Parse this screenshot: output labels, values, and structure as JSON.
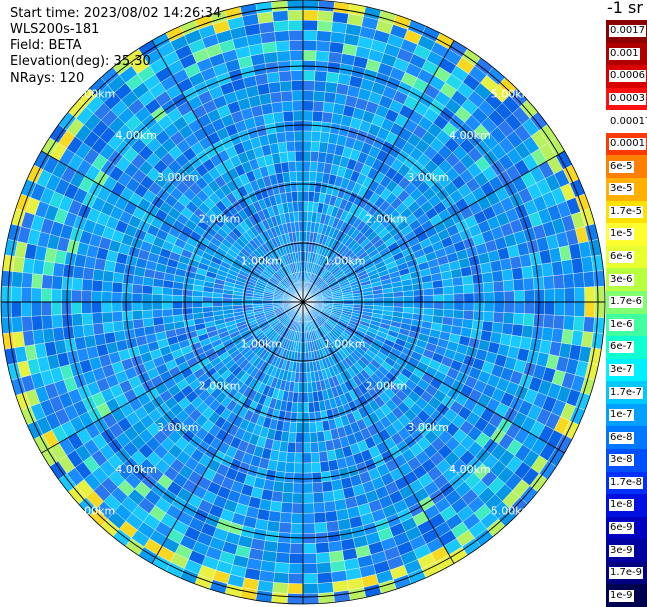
{
  "header": {
    "start_time": "Start time: 2023/08/02 14:26:34",
    "device": "WLS200s-181",
    "field": "Field: BETA",
    "elevation": "Elevation(deg): 35.30",
    "nrays": "NRays: 120"
  },
  "colorbar": {
    "unit": "-1 sr",
    "labels": [
      "0.0017",
      "0.001",
      "0.0006",
      "0.0003",
      "0.00017",
      "0.0001",
      "6e-5",
      "3e-5",
      "1.7e-5",
      "1e-5",
      "6e-6",
      "3e-6",
      "1.7e-6",
      "1e-6",
      "6e-7",
      "3e-7",
      "1.7e-7",
      "1e-7",
      "6e-8",
      "3e-8",
      "1.7e-8",
      "1e-8",
      "6e-9",
      "3e-9",
      "1.7e-9",
      "1e-9"
    ],
    "colors": [
      "#8b0000",
      "#b00000",
      "#d80000",
      "#ff1010",
      "#ffffff",
      "#ff3a00",
      "#ff7f00",
      "#ffb000",
      "#ffe000",
      "#ffff30",
      "#e8ff30",
      "#b8ff40",
      "#80ff70",
      "#40ffa0",
      "#10ffd0",
      "#00f0ff",
      "#00c8ff",
      "#00a0ff",
      "#0078ff",
      "#0050ff",
      "#0030ff",
      "#0010e0",
      "#0000c0",
      "#0000a0",
      "#000080",
      "#000050"
    ]
  },
  "chart_data": {
    "type": "heatmap",
    "projection": "polar PPI scan",
    "field": "BETA",
    "elevation_deg": 35.3,
    "nrays": 120,
    "range_rings_km": [
      "1.00km",
      "2.00km",
      "3.00km",
      "4.00km",
      "5.00km"
    ],
    "spokes": 12,
    "color_scale": "log",
    "value_range": [
      1e-09,
      0.0017
    ]
  }
}
